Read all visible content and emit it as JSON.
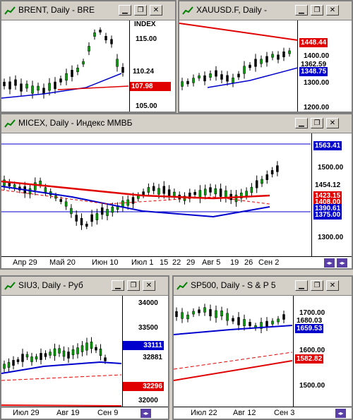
{
  "windows": {
    "brent": {
      "title": "BRENT, Daily - BRE",
      "axis_label": "INDEX",
      "prices": [
        "115.00",
        "110.24",
        "107.98",
        "105.00"
      ],
      "last_price": "110.24",
      "ma_price": "107.98"
    },
    "xau": {
      "title": "XAUUSD.F, Daily - ",
      "prices": [
        "1448.44",
        "1400.00",
        "1362.59",
        "1348.75",
        "1300.00",
        "1200.00"
      ],
      "last_price": "1362.59"
    },
    "micex": {
      "title": "MICEX, Daily - Индекс ММВБ",
      "prices": [
        "1563.41",
        "1500.00",
        "1454.12",
        "1423.15",
        "1408.00",
        "1390.61",
        "1375.00",
        "1300.00"
      ],
      "dates": [
        "Апр 29",
        "Май 20",
        "Июн 10",
        "Июл 1",
        "15",
        "22",
        "29",
        "Авг 5",
        "19",
        "26",
        "Сен 2"
      ]
    },
    "siu3": {
      "title": "SIU3, Daily - Руб",
      "prices": [
        "34000",
        "33500",
        "33111",
        "32881",
        "32296",
        "32000"
      ],
      "dates": [
        "Июл 29",
        "Авг 19",
        "Сен 9"
      ]
    },
    "sp500": {
      "title": "SP500, Daily - S & P 5",
      "prices": [
        "1700.00",
        "1680.03",
        "1659.53",
        "1600.00",
        "1582.82",
        "1500.00"
      ],
      "dates": [
        "Июл 22",
        "Авг 12",
        "Сен 3"
      ]
    }
  },
  "buttons": {
    "minimize": "▁",
    "restore": "❐",
    "close": "✕"
  },
  "colors": {
    "red_line": "#e00000",
    "blue_line": "#0000cc",
    "candle": "#008000",
    "tag_black": "#000000"
  }
}
